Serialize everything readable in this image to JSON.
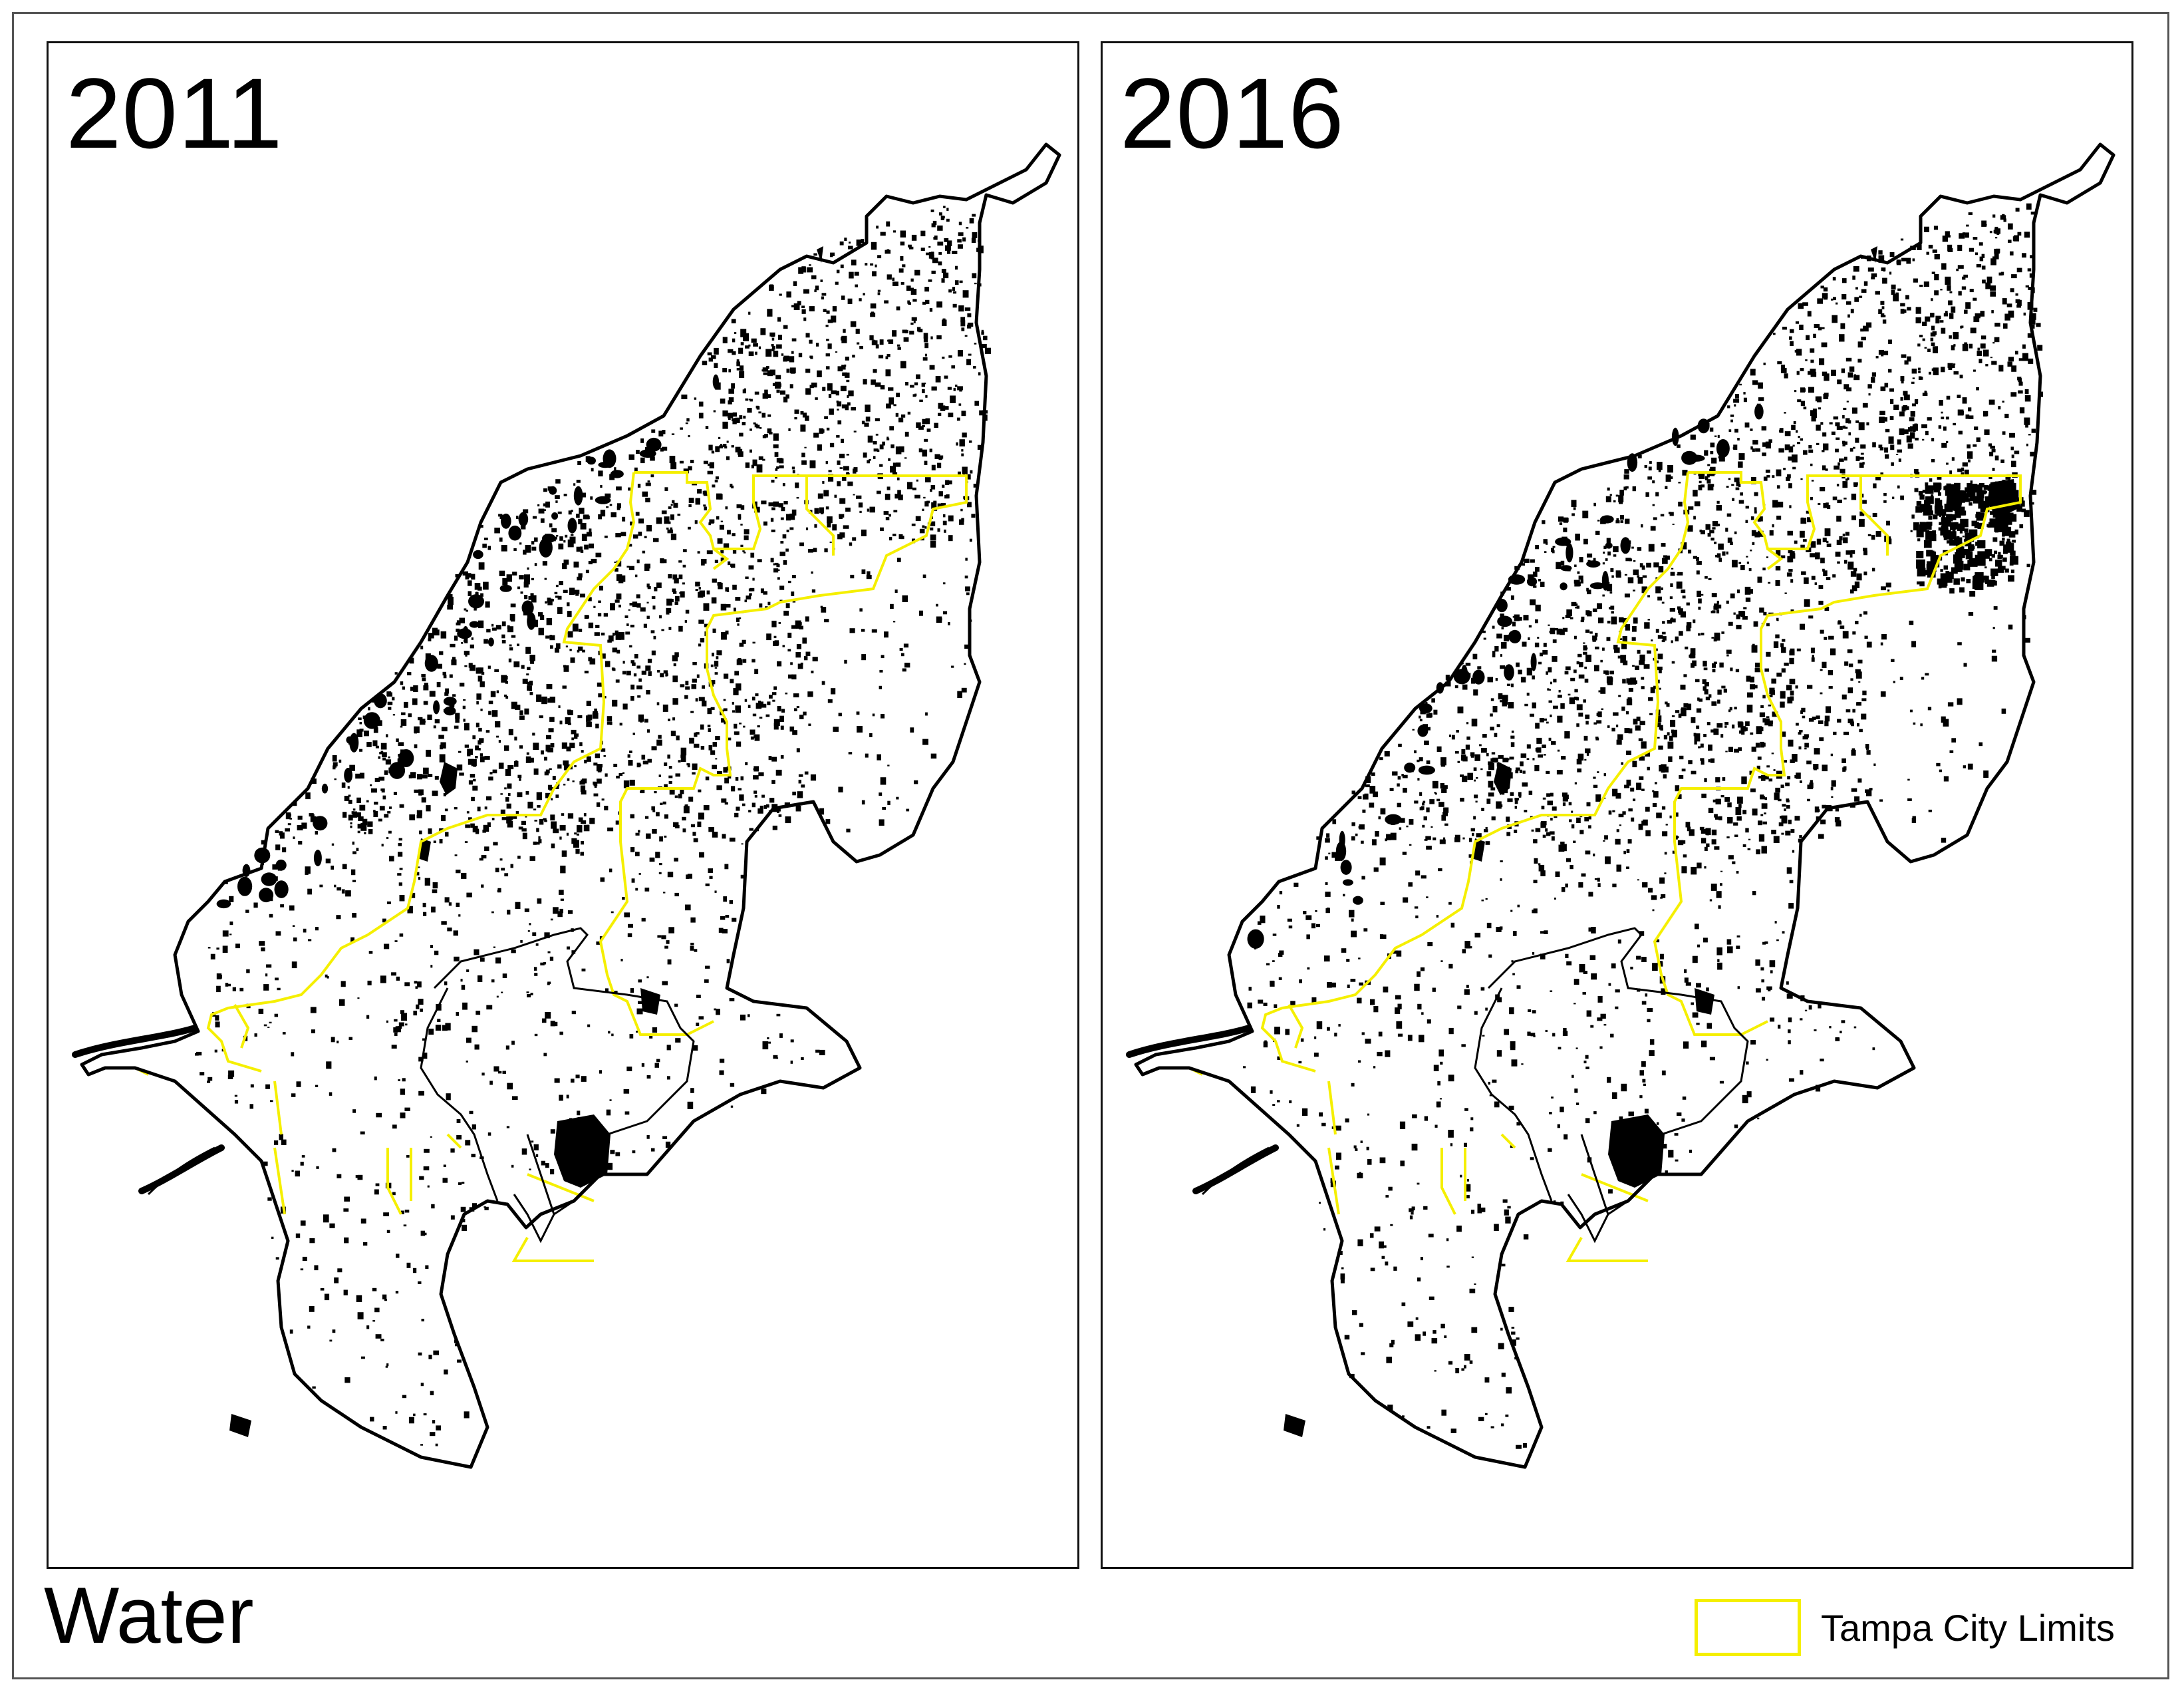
{
  "figure": {
    "caption": "Water"
  },
  "panels": [
    {
      "year": "2011"
    },
    {
      "year": "2016"
    }
  ],
  "legend": {
    "label": "Tampa City Limits",
    "color": "#f5ef00"
  },
  "colors": {
    "county_boundary": "#000000",
    "water_features": "#000000",
    "city_limits": "#f5ef00",
    "background": "#ffffff"
  }
}
